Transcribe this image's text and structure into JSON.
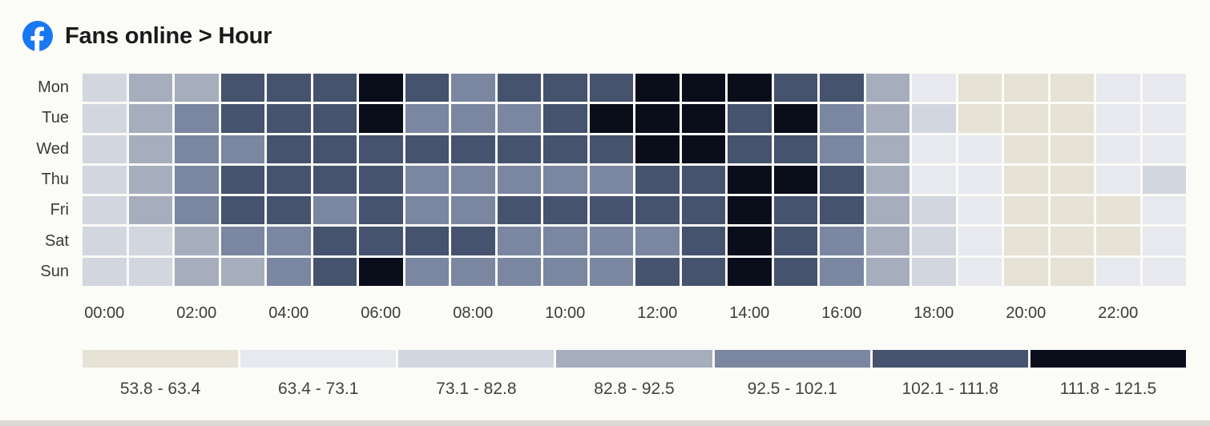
{
  "header": {
    "title": "Fans online > Hour",
    "icon": "facebook-icon",
    "brand_color": "#1877f2"
  },
  "chart_data": {
    "type": "heatmap",
    "title": "Fans online > Hour",
    "y_categories": [
      "Mon",
      "Tue",
      "Wed",
      "Thu",
      "Fri",
      "Sat",
      "Sun"
    ],
    "x_hours": 24,
    "x_tick_labels": [
      "00:00",
      "02:00",
      "04:00",
      "06:00",
      "08:00",
      "10:00",
      "12:00",
      "14:00",
      "16:00",
      "18:00",
      "20:00",
      "22:00"
    ],
    "x_tick_every": 2,
    "legend_position": "bottom",
    "grid": false,
    "buckets": [
      {
        "label": "53.8 - 63.4",
        "color": "#e6e2d6"
      },
      {
        "label": "63.4 - 73.1",
        "color": "#e7e9ee"
      },
      {
        "label": "73.1 - 82.8",
        "color": "#d2d6df"
      },
      {
        "label": "82.8 - 92.5",
        "color": "#a6aebd"
      },
      {
        "label": "92.5 - 102.1",
        "color": "#7b86a1"
      },
      {
        "label": "102.1 - 111.8",
        "color": "#46536e"
      },
      {
        "label": "111.8 - 121.5",
        "color": "#0a0e1b"
      }
    ],
    "series": [
      {
        "name": "Mon",
        "bucket_index": [
          3,
          4,
          4,
          6,
          6,
          6,
          7,
          6,
          5,
          6,
          6,
          6,
          7,
          7,
          7,
          6,
          6,
          4,
          2,
          1,
          1,
          1,
          2,
          2
        ]
      },
      {
        "name": "Tue",
        "bucket_index": [
          3,
          4,
          5,
          6,
          6,
          6,
          7,
          5,
          5,
          5,
          6,
          7,
          7,
          7,
          6,
          7,
          5,
          4,
          3,
          1,
          1,
          1,
          2,
          2
        ]
      },
      {
        "name": "Wed",
        "bucket_index": [
          3,
          4,
          5,
          5,
          6,
          6,
          6,
          6,
          6,
          6,
          6,
          6,
          7,
          7,
          6,
          6,
          5,
          4,
          2,
          2,
          1,
          1,
          2,
          2
        ]
      },
      {
        "name": "Thu",
        "bucket_index": [
          3,
          4,
          5,
          6,
          6,
          6,
          6,
          5,
          5,
          5,
          5,
          5,
          6,
          6,
          7,
          7,
          6,
          4,
          2,
          2,
          1,
          1,
          2,
          3
        ]
      },
      {
        "name": "Fri",
        "bucket_index": [
          3,
          4,
          5,
          6,
          6,
          5,
          6,
          5,
          5,
          6,
          6,
          6,
          6,
          6,
          7,
          6,
          6,
          4,
          3,
          2,
          1,
          1,
          1,
          2
        ]
      },
      {
        "name": "Sat",
        "bucket_index": [
          3,
          3,
          4,
          5,
          5,
          6,
          6,
          6,
          6,
          5,
          5,
          5,
          5,
          6,
          7,
          6,
          5,
          4,
          3,
          2,
          1,
          1,
          1,
          2
        ]
      },
      {
        "name": "Sun",
        "bucket_index": [
          3,
          3,
          4,
          4,
          5,
          6,
          7,
          5,
          5,
          5,
          5,
          5,
          6,
          6,
          7,
          6,
          5,
          4,
          3,
          2,
          1,
          1,
          2,
          2
        ]
      }
    ]
  }
}
